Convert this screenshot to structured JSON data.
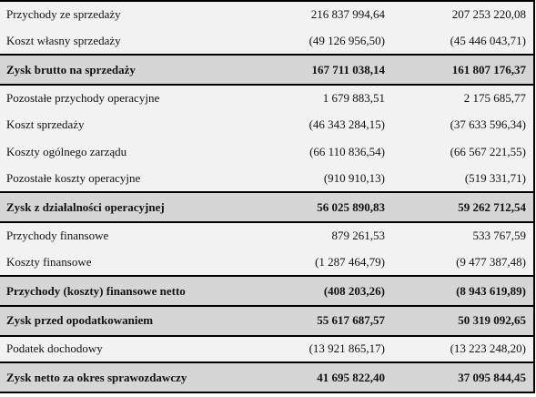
{
  "rows": [
    {
      "label": "Przychody ze sprzedaży",
      "current": "216 837 994,64",
      "previous": "207 253 220,08",
      "total": false
    },
    {
      "label": "Koszt własny sprzedaży",
      "current": "(49 126 956,50)",
      "previous": "(45 446 043,71)",
      "total": false
    },
    {
      "label": "Zysk brutto na sprzedaży",
      "current": "167 711 038,14",
      "previous": "161 807 176,37",
      "total": true
    },
    {
      "label": "Pozostałe przychody operacyjne",
      "current": "1 679 883,51",
      "previous": "2 175 685,77",
      "total": false
    },
    {
      "label": "Koszt sprzedaży",
      "current": "(46 343 284,15)",
      "previous": "(37 633 596,34)",
      "total": false
    },
    {
      "label": "Koszty ogólnego zarządu",
      "current": "(66 110 836,54)",
      "previous": "(66 567 221,55)",
      "total": false
    },
    {
      "label": "Pozostałe koszty operacyjne",
      "current": "(910 910,13)",
      "previous": "(519 331,71)",
      "total": false
    },
    {
      "label": "Zysk z działalności operacyjnej",
      "current": "56 025 890,83",
      "previous": "59 262 712,54",
      "total": true
    },
    {
      "label": "Przychody finansowe",
      "current": "879 261,53",
      "previous": "533 767,59",
      "total": false
    },
    {
      "label": "Koszty finansowe",
      "current": "(1 287 464,79)",
      "previous": "(9 477 387,48)",
      "total": false
    },
    {
      "label": "Przychody (koszty) finansowe netto",
      "current": "(408 203,26)",
      "previous": "(8 943 619,89)",
      "total": true
    },
    {
      "label": "Zysk przed opodatkowaniem",
      "current": "55 617 687,57",
      "previous": "50 319 092,65",
      "total": true
    },
    {
      "label": "Podatek dochodowy",
      "current": "(13 921 865,17)",
      "previous": "(13 223 248,20)",
      "total": false
    },
    {
      "label": "Zysk netto za okres sprawozdawczy",
      "current": "41 695 822,40",
      "previous": "37 095 844,45",
      "total": true
    }
  ]
}
